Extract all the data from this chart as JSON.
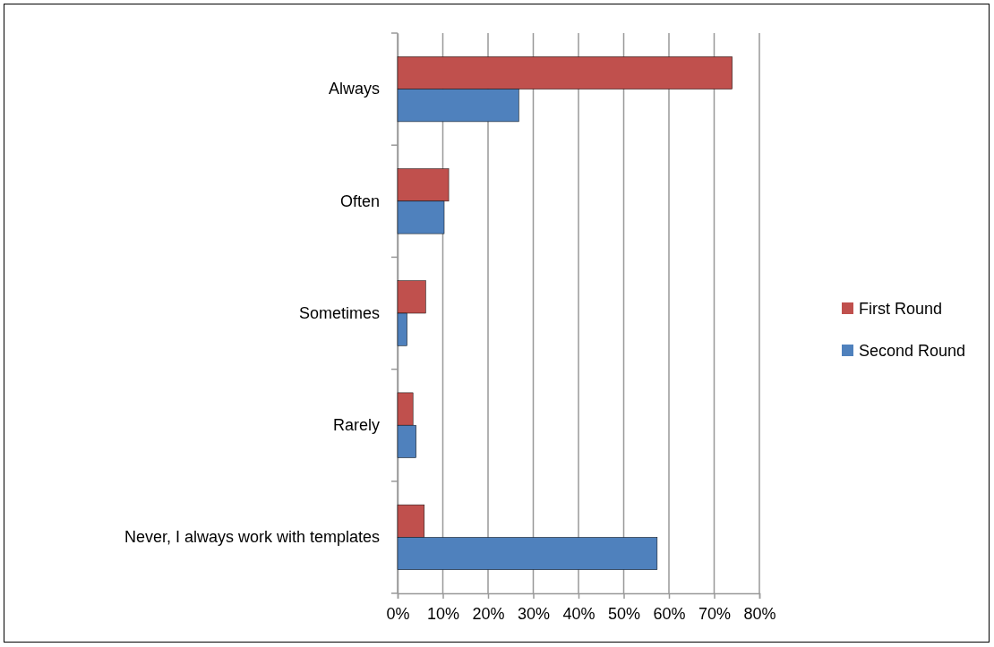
{
  "chart_data": {
    "type": "bar",
    "orientation": "horizontal",
    "categories": [
      "Always",
      "Often",
      "Sometimes",
      "Rarely",
      "Never, I always work with templates"
    ],
    "series": [
      {
        "name": "First Round",
        "color": "#c0504d",
        "values": [
          74,
          11.3,
          6.2,
          3.4,
          5.9
        ]
      },
      {
        "name": "Second Round",
        "color": "#4f81bd",
        "values": [
          26.8,
          10.3,
          2.1,
          4.1,
          57.4
        ]
      }
    ],
    "xlim": [
      0,
      80
    ],
    "xticks": [
      {
        "value": 0,
        "label": "0%"
      },
      {
        "value": 10,
        "label": "10%"
      },
      {
        "value": 20,
        "label": "20%"
      },
      {
        "value": 30,
        "label": "30%"
      },
      {
        "value": 40,
        "label": "40%"
      },
      {
        "value": 50,
        "label": "50%"
      },
      {
        "value": 60,
        "label": "60%"
      },
      {
        "value": 70,
        "label": "70%"
      },
      {
        "value": 80,
        "label": "80%"
      }
    ],
    "grid": "x",
    "legend": "right"
  }
}
